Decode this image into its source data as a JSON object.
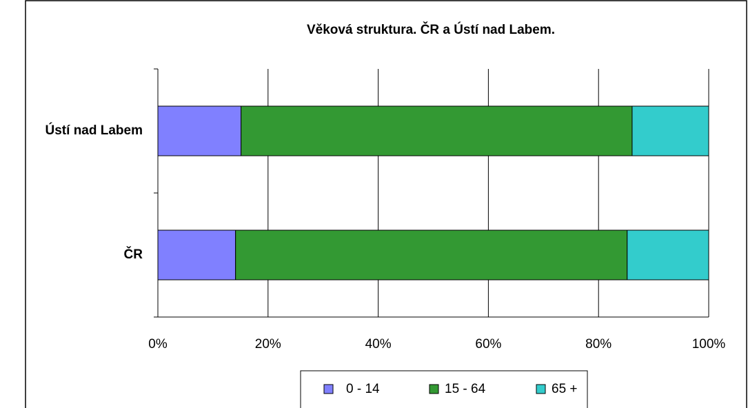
{
  "chart_data": {
    "type": "stacked_barh",
    "title": "Věková struktura. ČR a Ústí nad Labem.",
    "categories": [
      "Ústí nad Labem",
      "ČR"
    ],
    "series": [
      {
        "name": "0 - 14",
        "color": "#8080ff",
        "values": [
          15.1,
          14.1
        ]
      },
      {
        "name": "15 - 64",
        "color": "#339933",
        "values": [
          71.0,
          71.1
        ]
      },
      {
        "name": "65 +",
        "color": "#33cccc",
        "values": [
          13.9,
          14.8
        ]
      }
    ],
    "xlim": [
      0,
      100
    ],
    "xticks": [
      {
        "value": 0,
        "label": "0%"
      },
      {
        "value": 20,
        "label": "20%"
      },
      {
        "value": 40,
        "label": "40%"
      },
      {
        "value": 60,
        "label": "60%"
      },
      {
        "value": 80,
        "label": "80%"
      },
      {
        "value": 100,
        "label": "100%"
      }
    ],
    "grid": true,
    "legend": "bottom"
  }
}
